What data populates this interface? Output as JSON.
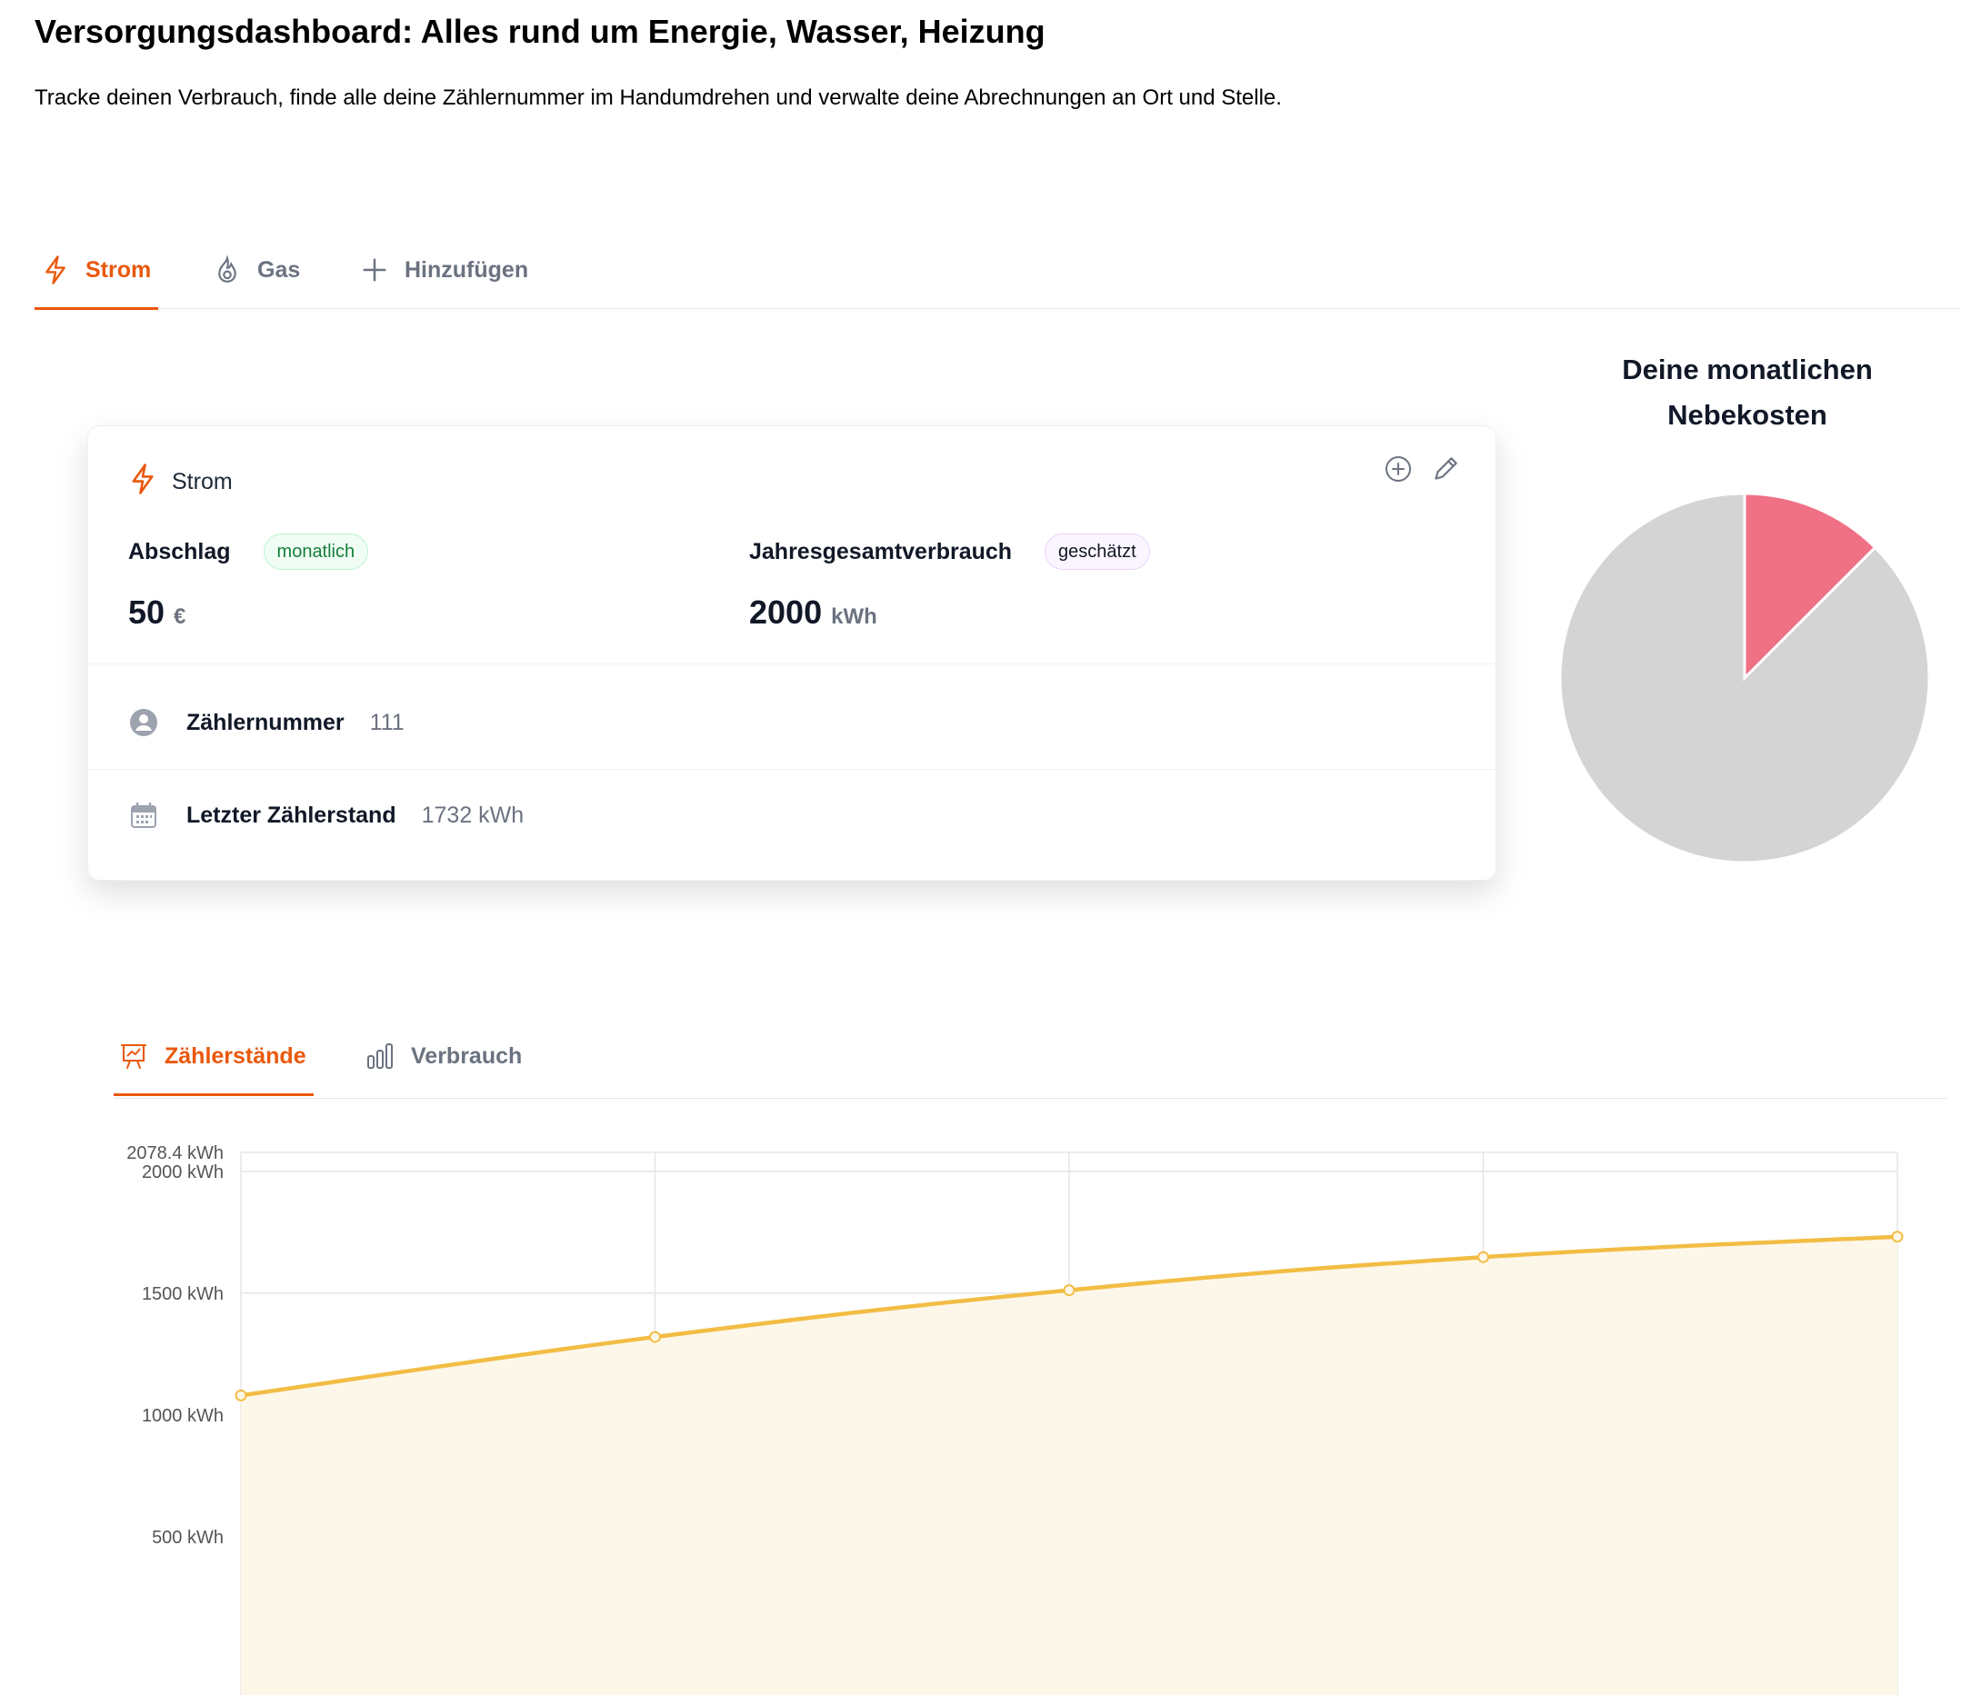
{
  "header": {
    "title": "Versorgungsdashboard: Alles rund um Energie, Wasser, Heizung",
    "subtitle": "Tracke deinen Verbrauch, finde alle deine Zählernummer im Handumdrehen und verwalte deine Abrechnungen an Ort und Stelle."
  },
  "tabs": [
    {
      "label": "Strom",
      "icon": "lightning-icon",
      "active": true
    },
    {
      "label": "Gas",
      "icon": "flame-icon",
      "active": false
    },
    {
      "label": "Hinzufügen",
      "icon": "plus-icon",
      "active": false
    }
  ],
  "card": {
    "title": "Strom",
    "abschlag": {
      "label": "Abschlag",
      "badge": "monatlich",
      "value": "50",
      "unit": "€"
    },
    "jahresverbrauch": {
      "label": "Jahresgesamtverbrauch",
      "badge": "geschätzt",
      "value": "2000",
      "unit": "kWh"
    },
    "zaehlernummer": {
      "label": "Zählernummer",
      "value": "111"
    },
    "letzter_zaehlerstand": {
      "label": "Letzter Zählerstand",
      "value": "1732 kWh"
    }
  },
  "pie": {
    "title_line1": "Deine monatlichen",
    "title_line2": "Nebekosten",
    "slices": [
      {
        "value": 0.125,
        "color": "#f07085"
      },
      {
        "value": 0.875,
        "color": "#d4d4d4"
      }
    ]
  },
  "chart_tabs": [
    {
      "label": "Zählerstände",
      "icon": "presentation-chart-icon",
      "active": true
    },
    {
      "label": "Verbrauch",
      "icon": "bar-chart-icon",
      "active": false
    }
  ],
  "colors": {
    "accent": "#ea580c",
    "line": "#f2bd44",
    "area": "#fdf7ea",
    "grid": "#e6e6e6"
  },
  "chart_data": {
    "type": "area",
    "ylabel_unit": "kWh",
    "ylim": [
      0,
      2078.4
    ],
    "y_ticks": [
      "2078.4 kWh",
      "2000 kWh",
      "1500 kWh",
      "1000 kWh",
      "500 kWh"
    ],
    "y_tick_values": [
      2078.4,
      2000,
      1500,
      1000,
      500
    ],
    "series": [
      {
        "values": [
          1080,
          1320,
          1512,
          1648,
          1732
        ]
      }
    ]
  }
}
